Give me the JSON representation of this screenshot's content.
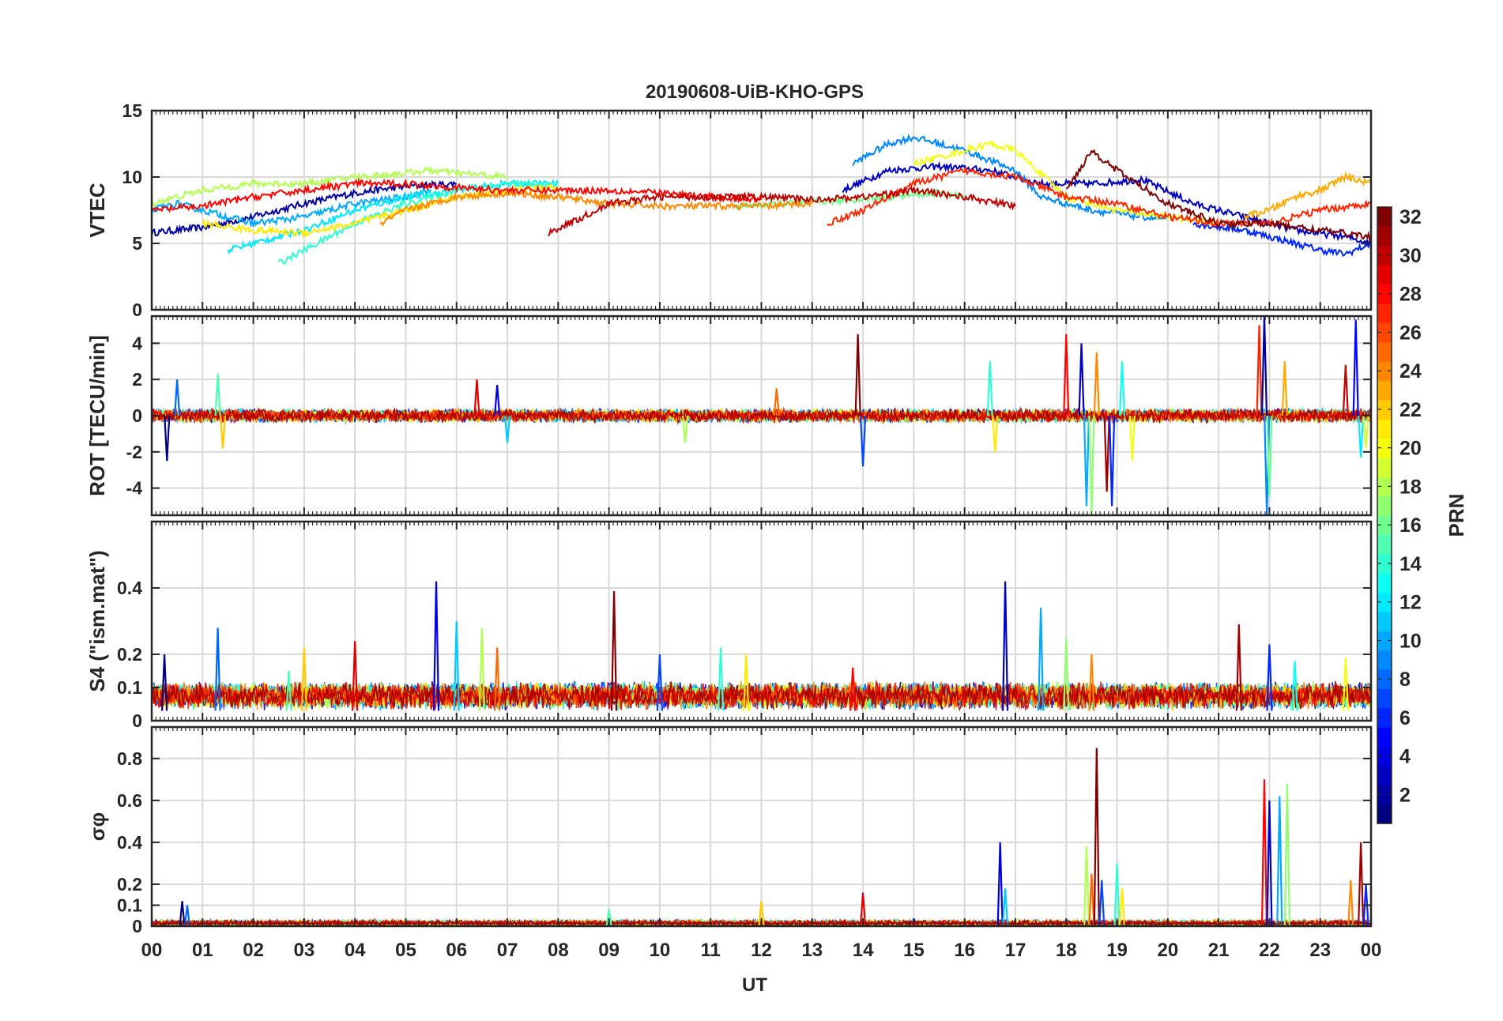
{
  "figure": {
    "title": "20190608-UiB-KHO-GPS",
    "xlabel": "UT",
    "x_tick_labels": [
      "00",
      "01",
      "02",
      "03",
      "04",
      "05",
      "06",
      "07",
      "08",
      "09",
      "10",
      "11",
      "12",
      "13",
      "14",
      "15",
      "16",
      "17",
      "18",
      "19",
      "20",
      "21",
      "22",
      "23",
      "00"
    ]
  },
  "colorbar": {
    "label": "PRN",
    "colormap": "jet",
    "range": [
      1,
      32
    ],
    "tick_labels": [
      "2",
      "4",
      "6",
      "8",
      "10",
      "12",
      "14",
      "16",
      "18",
      "20",
      "22",
      "24",
      "26",
      "28",
      "30",
      "32"
    ]
  },
  "chart_data": [
    {
      "type": "line",
      "panel": "vtec",
      "ylabel": "VTEC",
      "xlim": [
        0,
        24
      ],
      "ylim": [
        0,
        15
      ],
      "y_ticks": [
        0,
        5,
        10,
        15
      ],
      "y_tick_labels": [
        "0",
        "5",
        "10",
        "15"
      ],
      "grid": true,
      "series": [
        {
          "prn": 2,
          "x": [
            0.0,
            1.0,
            2.0,
            3.0,
            4.0,
            5.0,
            6.0
          ],
          "y": [
            5.8,
            6.2,
            7.0,
            8.0,
            8.8,
            9.3,
            9.5
          ]
        },
        {
          "prn": 3,
          "x": [
            13.6,
            14.5,
            15.5,
            16.5,
            17.5,
            18.5,
            19.5,
            20.5,
            21.5,
            22.5,
            23.5,
            24.0
          ],
          "y": [
            9.0,
            10.5,
            10.8,
            10.5,
            9.5,
            9.5,
            9.8,
            8.0,
            7.0,
            6.0,
            5.5,
            5.0
          ]
        },
        {
          "prn": 6,
          "x": [
            20.5,
            21.5,
            22.5,
            23.0,
            23.5,
            24.0
          ],
          "y": [
            6.5,
            6.0,
            5.0,
            4.5,
            4.2,
            5.0
          ]
        },
        {
          "prn": 9,
          "x": [
            13.8,
            14.5,
            15.0,
            16.0,
            17.0,
            17.5,
            18.5,
            19.5,
            20.0
          ],
          "y": [
            11.0,
            12.5,
            13.0,
            12.0,
            10.5,
            8.5,
            7.5,
            7.0,
            6.8
          ]
        },
        {
          "prn": 10,
          "x": [
            0.0,
            0.5,
            1.0,
            1.5,
            2.0,
            3.0,
            4.0,
            5.0,
            5.5
          ],
          "y": [
            7.5,
            8.0,
            7.5,
            7.0,
            6.5,
            7.0,
            8.0,
            8.5,
            9.0
          ]
        },
        {
          "prn": 12,
          "x": [
            1.5,
            2.0,
            3.0,
            4.0,
            5.0,
            6.0,
            7.0,
            8.0
          ],
          "y": [
            4.5,
            5.0,
            6.0,
            7.5,
            8.5,
            9.0,
            9.5,
            9.5
          ]
        },
        {
          "prn": 14,
          "x": [
            2.5,
            3.0,
            3.5,
            4.0,
            5.0,
            6.0,
            7.0,
            8.0
          ],
          "y": [
            3.5,
            4.5,
            5.5,
            6.5,
            8.0,
            9.0,
            9.5,
            9.3
          ]
        },
        {
          "prn": 16,
          "x": [
            11.5,
            12.5,
            13.5,
            14.5,
            15.5,
            16.0
          ],
          "y": [
            7.8,
            8.0,
            8.2,
            8.5,
            8.8,
            8.5
          ]
        },
        {
          "prn": 18,
          "x": [
            0.0,
            1.0,
            2.0,
            3.0,
            4.0,
            5.0,
            5.5,
            6.0,
            7.0
          ],
          "y": [
            8.0,
            9.0,
            9.5,
            9.5,
            10.0,
            10.3,
            10.5,
            10.3,
            10.0
          ]
        },
        {
          "prn": 20,
          "x": [
            15.0,
            16.0,
            16.5,
            17.0,
            18.0,
            19.0,
            20.0,
            21.0
          ],
          "y": [
            11.0,
            12.0,
            12.5,
            12.0,
            8.5,
            7.5,
            7.0,
            6.5
          ]
        },
        {
          "prn": 21,
          "x": [
            1.0,
            2.0,
            3.0,
            4.0,
            5.0,
            6.0,
            7.0,
            8.0
          ],
          "y": [
            6.5,
            6.0,
            5.8,
            6.5,
            7.5,
            8.5,
            9.0,
            9.2
          ]
        },
        {
          "prn": 23,
          "x": [
            21.5,
            22.0,
            22.5,
            23.0,
            23.5,
            24.0
          ],
          "y": [
            7.0,
            7.5,
            8.5,
            9.0,
            10.0,
            9.5
          ]
        },
        {
          "prn": 24,
          "x": [
            4.5,
            5.0,
            6.0,
            7.0,
            8.0,
            9.0,
            10.0,
            11.0,
            12.0,
            13.0
          ],
          "y": [
            6.5,
            7.5,
            8.5,
            8.8,
            8.5,
            8.0,
            7.8,
            7.8,
            7.8,
            8.0
          ]
        },
        {
          "prn": 27,
          "x": [
            13.3,
            14.0,
            14.5,
            15.0,
            16.0,
            17.0,
            18.0,
            19.0,
            20.0,
            21.0,
            22.0,
            23.0,
            24.0
          ],
          "y": [
            6.5,
            7.5,
            8.5,
            9.5,
            10.5,
            10.0,
            8.5,
            8.0,
            7.0,
            6.5,
            6.5,
            7.5,
            8.0
          ]
        },
        {
          "prn": 28,
          "x": [
            0.0,
            1.0,
            2.0,
            3.0,
            4.0,
            5.0,
            6.0,
            7.0,
            8.0,
            9.0,
            10.0,
            11.0,
            12.0
          ],
          "y": [
            7.5,
            7.8,
            8.5,
            9.0,
            9.5,
            9.5,
            9.2,
            9.0,
            9.0,
            9.0,
            8.8,
            8.5,
            8.3
          ]
        },
        {
          "prn": 30,
          "x": [
            7.8,
            8.5,
            9.0,
            10.0,
            11.0,
            12.0,
            13.0,
            14.0,
            15.0,
            16.0,
            17.0
          ],
          "y": [
            5.8,
            7.0,
            8.0,
            8.5,
            8.5,
            8.5,
            8.3,
            8.5,
            9.0,
            8.5,
            7.8
          ]
        },
        {
          "prn": 32,
          "x": [
            18.0,
            18.5,
            19.0,
            20.0,
            21.0,
            22.0,
            23.0,
            24.0
          ],
          "y": [
            9.0,
            12.0,
            10.5,
            8.0,
            6.5,
            6.5,
            6.0,
            5.5
          ]
        }
      ]
    },
    {
      "type": "line",
      "panel": "rot",
      "ylabel": "ROT [TECU/min]",
      "xlim": [
        0,
        24
      ],
      "ylim": [
        -5.5,
        5.5
      ],
      "y_ticks": [
        -4,
        -2,
        0,
        2,
        4
      ],
      "y_tick_labels": [
        "-4",
        "-2",
        "0",
        "2",
        "4"
      ],
      "grid": true,
      "baseline_noise_amplitude": 0.3,
      "spikes": [
        {
          "x": 0.3,
          "y": -2.5
        },
        {
          "x": 0.5,
          "y": 2.0
        },
        {
          "x": 1.3,
          "y": 2.3
        },
        {
          "x": 1.4,
          "y": -1.8
        },
        {
          "x": 6.4,
          "y": 2.0
        },
        {
          "x": 6.8,
          "y": 1.7
        },
        {
          "x": 7.0,
          "y": -1.5
        },
        {
          "x": 10.5,
          "y": -1.5
        },
        {
          "x": 12.3,
          "y": 1.5
        },
        {
          "x": 13.9,
          "y": 4.5
        },
        {
          "x": 14.0,
          "y": -2.8
        },
        {
          "x": 16.5,
          "y": 3.0
        },
        {
          "x": 16.6,
          "y": -2.0
        },
        {
          "x": 18.0,
          "y": 4.5
        },
        {
          "x": 18.3,
          "y": 4.0
        },
        {
          "x": 18.4,
          "y": -5.0
        },
        {
          "x": 18.5,
          "y": -5.5
        },
        {
          "x": 18.6,
          "y": 3.5
        },
        {
          "x": 18.8,
          "y": -4.2
        },
        {
          "x": 18.9,
          "y": -5.0
        },
        {
          "x": 19.1,
          "y": 3.0
        },
        {
          "x": 19.3,
          "y": -2.5
        },
        {
          "x": 21.8,
          "y": 5.0
        },
        {
          "x": 21.9,
          "y": 5.5
        },
        {
          "x": 21.95,
          "y": -5.5
        },
        {
          "x": 22.0,
          "y": -4.5
        },
        {
          "x": 22.3,
          "y": 3.0
        },
        {
          "x": 23.5,
          "y": 2.8
        },
        {
          "x": 23.7,
          "y": 5.3
        },
        {
          "x": 23.8,
          "y": -2.3
        },
        {
          "x": 23.9,
          "y": -1.8
        }
      ]
    },
    {
      "type": "line",
      "panel": "s4",
      "ylabel": "S4 (\"ism.mat\")",
      "xlim": [
        0,
        24
      ],
      "ylim": [
        0,
        0.6
      ],
      "y_ticks": [
        0,
        0.1,
        0.2,
        0.4
      ],
      "y_tick_labels": [
        "0",
        "0.1",
        "0.2",
        "0.4"
      ],
      "grid": true,
      "baseline_range": [
        0.03,
        0.12
      ],
      "spikes": [
        {
          "x": 0.25,
          "y": 0.2
        },
        {
          "x": 1.3,
          "y": 0.28
        },
        {
          "x": 2.7,
          "y": 0.15
        },
        {
          "x": 3.0,
          "y": 0.22
        },
        {
          "x": 4.0,
          "y": 0.24
        },
        {
          "x": 5.6,
          "y": 0.42
        },
        {
          "x": 6.0,
          "y": 0.3
        },
        {
          "x": 6.5,
          "y": 0.28
        },
        {
          "x": 6.8,
          "y": 0.22
        },
        {
          "x": 9.1,
          "y": 0.39
        },
        {
          "x": 10.0,
          "y": 0.2
        },
        {
          "x": 11.2,
          "y": 0.22
        },
        {
          "x": 11.7,
          "y": 0.2
        },
        {
          "x": 13.8,
          "y": 0.16
        },
        {
          "x": 16.8,
          "y": 0.42
        },
        {
          "x": 17.5,
          "y": 0.34
        },
        {
          "x": 18.0,
          "y": 0.25
        },
        {
          "x": 18.5,
          "y": 0.2
        },
        {
          "x": 21.4,
          "y": 0.29
        },
        {
          "x": 22.0,
          "y": 0.23
        },
        {
          "x": 22.5,
          "y": 0.18
        },
        {
          "x": 23.5,
          "y": 0.19
        }
      ]
    },
    {
      "type": "line",
      "panel": "sigma_phi",
      "ylabel": "σφ",
      "xlim": [
        0,
        24
      ],
      "ylim": [
        0,
        0.95
      ],
      "y_ticks": [
        0,
        0.1,
        0.2,
        0.4,
        0.6,
        0.8
      ],
      "y_tick_labels": [
        "0",
        "0.1",
        "0.2",
        "0.4",
        "0.6",
        "0.8"
      ],
      "grid": true,
      "baseline_range": [
        0.0,
        0.03
      ],
      "spikes": [
        {
          "x": 0.6,
          "y": 0.12
        },
        {
          "x": 0.7,
          "y": 0.1
        },
        {
          "x": 9.0,
          "y": 0.08
        },
        {
          "x": 12.0,
          "y": 0.12
        },
        {
          "x": 14.0,
          "y": 0.16
        },
        {
          "x": 16.7,
          "y": 0.4
        },
        {
          "x": 16.8,
          "y": 0.18
        },
        {
          "x": 18.4,
          "y": 0.38
        },
        {
          "x": 18.5,
          "y": 0.25
        },
        {
          "x": 18.6,
          "y": 0.85
        },
        {
          "x": 18.7,
          "y": 0.22
        },
        {
          "x": 19.0,
          "y": 0.3
        },
        {
          "x": 19.1,
          "y": 0.18
        },
        {
          "x": 21.9,
          "y": 0.7
        },
        {
          "x": 22.0,
          "y": 0.6
        },
        {
          "x": 22.2,
          "y": 0.62
        },
        {
          "x": 22.35,
          "y": 0.68
        },
        {
          "x": 23.6,
          "y": 0.22
        },
        {
          "x": 23.8,
          "y": 0.4
        },
        {
          "x": 23.9,
          "y": 0.2
        }
      ]
    }
  ]
}
